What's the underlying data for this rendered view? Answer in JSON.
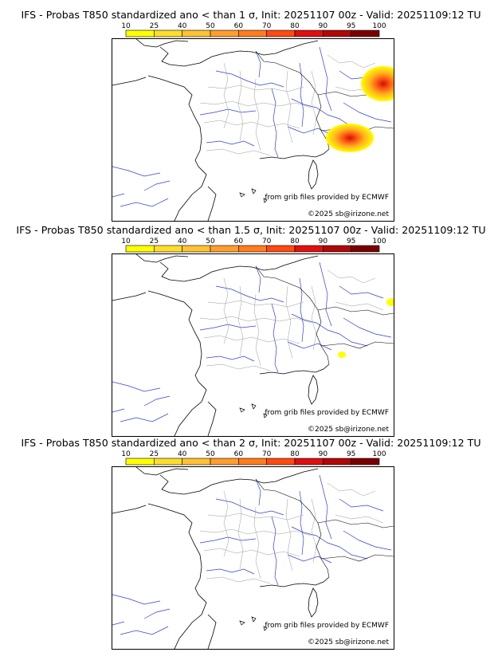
{
  "colorbar": {
    "ticks": [
      "10",
      "25",
      "40",
      "50",
      "60",
      "70",
      "80",
      "90",
      "95",
      "100"
    ],
    "colors": [
      "#ffff00",
      "#ffdd2c",
      "#ffc233",
      "#ff9e2c",
      "#ff7d1c",
      "#ff4a10",
      "#e01010",
      "#b00808",
      "#7a0000"
    ]
  },
  "panels": [
    {
      "title": "IFS - Probas T850  standardized ano < than 1 σ, Init: 20251107 00z - Valid: 20251109:12 TU",
      "credit_source": "from grib files provided by ECMWF",
      "credit_copyright": "©2025 sb@irizone.net",
      "anomaly_sigma": 1,
      "probability_patches": [
        {
          "region": "south-west Germany / northern Switzerland",
          "max_prob": 80
        },
        {
          "region": "Alps / north-west Italy",
          "max_prob": 80
        }
      ]
    },
    {
      "title": "IFS - Probas T850  standardized ano < than 1.5 σ, Init: 20251107 00z - Valid: 20251109:12 TU",
      "credit_source": "from grib files provided by ECMWF",
      "credit_copyright": "©2025 sb@irizone.net",
      "anomaly_sigma": 1.5,
      "probability_patches": [
        {
          "region": "southern Germany edge",
          "max_prob": 10
        },
        {
          "region": "Ligurian coast",
          "max_prob": 10
        }
      ]
    },
    {
      "title": "IFS - Probas T850  standardized ano < than 2 σ, Init: 20251107 00z - Valid: 20251109:12 TU",
      "credit_source": "from grib files provided by ECMWF",
      "credit_copyright": "©2025 sb@irizone.net",
      "anomaly_sigma": 2,
      "probability_patches": []
    }
  ]
}
